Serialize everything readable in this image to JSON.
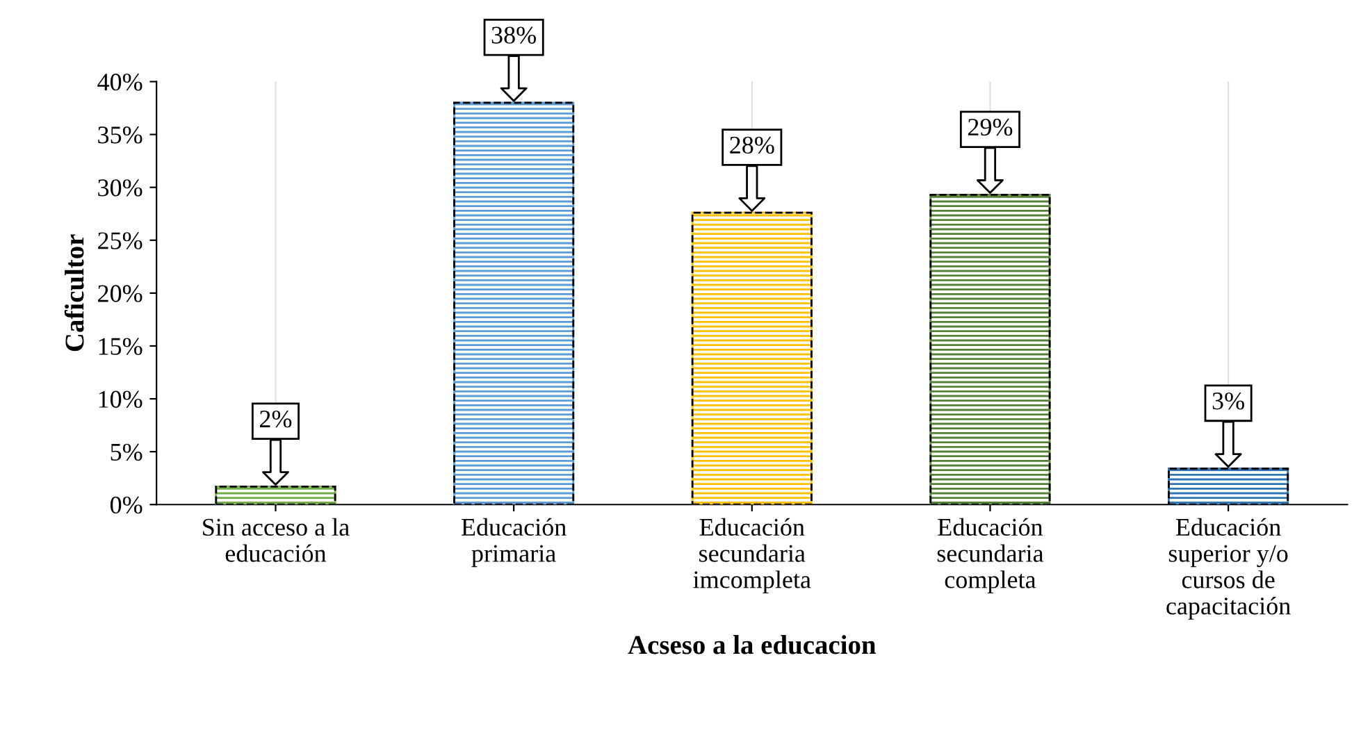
{
  "chart_data": {
    "type": "bar",
    "xlabel": "Acseso a la educacion",
    "ylabel": "Caficultor",
    "categories": [
      "Sin acceso a la\neducación",
      "Educación\nprimaria",
      "Educación\nsecundaria\nimcompleta",
      "Educación\nsecundaria\ncompleta",
      "Educación\nsuperior y/o\ncursos de\ncapacitación"
    ],
    "values": [
      1.7,
      38,
      27.6,
      29.3,
      3.4
    ],
    "value_labels": [
      "2%",
      "38%",
      "28%",
      "29%",
      "3%"
    ],
    "colors": [
      "#70ad47",
      "#5b9bd5",
      "#ffc000",
      "#548235",
      "#2e75b6"
    ],
    "ylim": [
      0,
      40
    ],
    "yticks": [
      {
        "value": 0,
        "label": "0%"
      },
      {
        "value": 5,
        "label": "5%"
      },
      {
        "value": 10,
        "label": "10%"
      },
      {
        "value": 15,
        "label": "15%"
      },
      {
        "value": 20,
        "label": "20%"
      },
      {
        "value": 25,
        "label": "25%"
      },
      {
        "value": 30,
        "label": "30%"
      },
      {
        "value": 35,
        "label": "35%"
      },
      {
        "value": 40,
        "label": "40%"
      }
    ],
    "grid": "x",
    "legend": false
  }
}
